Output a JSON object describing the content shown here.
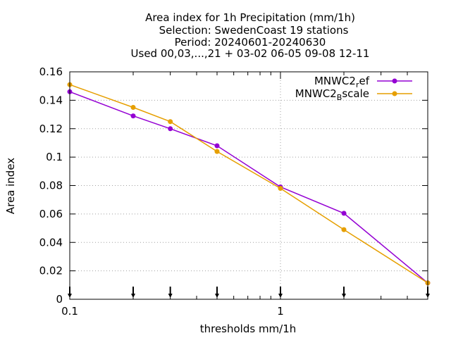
{
  "chart_data": {
    "type": "line",
    "title_lines": [
      "Area index  for 1h Precipitation (mm/1h)",
      "Selection: SwedenCoast     19 stations",
      "Period: 20240601-20240630",
      "Used 00,03,...,21 + 03-02 06-05 09-08 12-11"
    ],
    "xlabel": "thresholds mm/1h",
    "ylabel": "Area index",
    "x_scale": "log",
    "xlim": [
      0.1,
      5
    ],
    "ylim": [
      0,
      0.16
    ],
    "x_major_ticks": [
      0.1,
      1
    ],
    "x_tick_labels": [
      "0.1",
      "1"
    ],
    "y_ticks": [
      0,
      0.02,
      0.04,
      0.06,
      0.08,
      0.1,
      0.12,
      0.14,
      0.16
    ],
    "y_tick_labels": [
      "0",
      "0.02",
      "0.04",
      "0.06",
      "0.08",
      "0.1",
      "0.12",
      "0.14",
      "0.16"
    ],
    "grid": true,
    "legend_position": "top-right",
    "x": [
      0.1,
      0.2,
      0.3,
      0.5,
      1,
      2,
      5
    ],
    "series": [
      {
        "legend_main": "MNWC2",
        "legend_sub": "r",
        "legend_tail": "ef",
        "color": "#9400d3",
        "values": [
          0.146,
          0.129,
          0.12,
          0.108,
          0.079,
          0.0605,
          0.0115
        ]
      },
      {
        "legend_main": "MNWC2",
        "legend_sub": "B",
        "legend_tail": "scale",
        "color": "#e69f00",
        "values": [
          0.151,
          0.135,
          0.125,
          0.104,
          0.078,
          0.049,
          0.0115
        ]
      }
    ],
    "bottom_markers_x": [
      0.1,
      0.2,
      0.3,
      0.5,
      1,
      2,
      5
    ]
  }
}
